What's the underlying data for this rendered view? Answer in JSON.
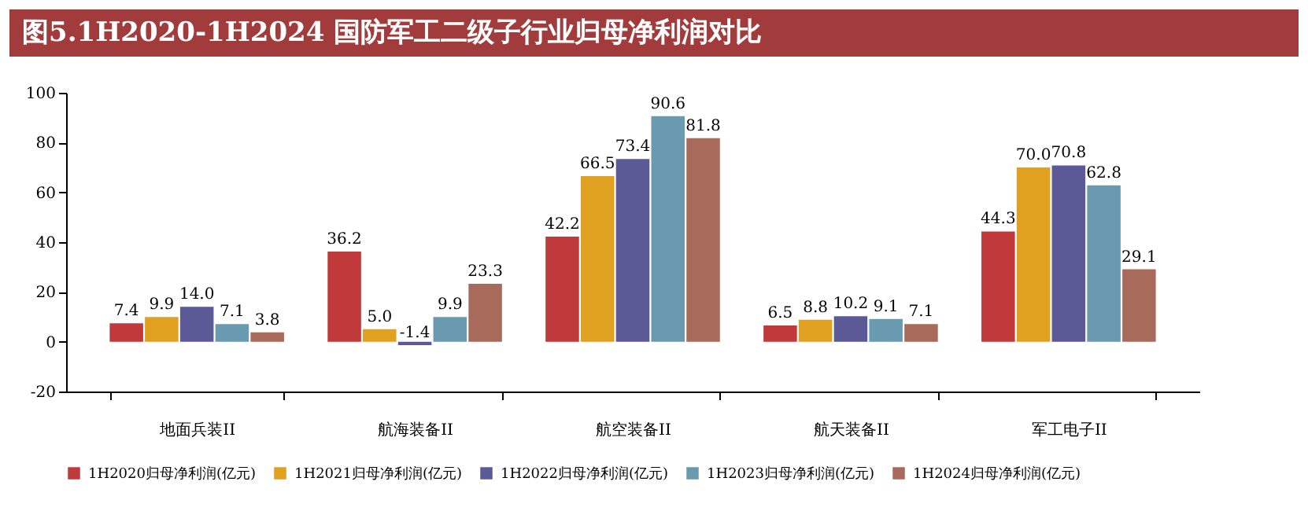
{
  "chart_data": {
    "type": "bar",
    "title": "图5.1H2020-1H2024 国防军工二级子行业归母净利润对比",
    "categories": [
      "地面兵装II",
      "航海装备II",
      "航空装备II",
      "航天装备II",
      "军工电子II"
    ],
    "series": [
      {
        "name": "1H2020归母净利润(亿元)",
        "color": "#c0393b",
        "values": [
          7.4,
          36.2,
          42.2,
          6.5,
          44.3
        ],
        "value_labels": [
          "7.4",
          "36.2",
          "42.2",
          "6.5",
          "44.3"
        ]
      },
      {
        "name": "1H2021归母净利润(亿元)",
        "color": "#e0a020",
        "values": [
          9.9,
          5.0,
          66.5,
          8.8,
          70.0
        ],
        "value_labels": [
          "9.9",
          "5.0",
          "66.5",
          "8.8",
          "70.0"
        ]
      },
      {
        "name": "1H2022归母净利润(亿元)",
        "color": "#5b5a96",
        "values": [
          14.0,
          -1.4,
          73.4,
          10.2,
          70.8
        ],
        "value_labels": [
          "14.0",
          "-1.4",
          "73.4",
          "10.2",
          "70.8"
        ]
      },
      {
        "name": "1H2023归母净利润(亿元)",
        "color": "#6a9ab0",
        "values": [
          7.1,
          9.9,
          90.6,
          9.1,
          62.8
        ],
        "value_labels": [
          "7.1",
          "9.9",
          "90.6",
          "9.1",
          "62.8"
        ]
      },
      {
        "name": "1H2024归母净利润(亿元)",
        "color": "#a86a5a",
        "values": [
          3.8,
          23.3,
          81.8,
          7.1,
          29.1
        ],
        "value_labels": [
          "3.8",
          "23.3",
          "81.8",
          "7.1",
          "29.1"
        ]
      }
    ],
    "ylim": [
      -20,
      100
    ],
    "yticks": [
      -20,
      0,
      20,
      40,
      60,
      80,
      100
    ],
    "grid": false,
    "legend": "bottom"
  }
}
